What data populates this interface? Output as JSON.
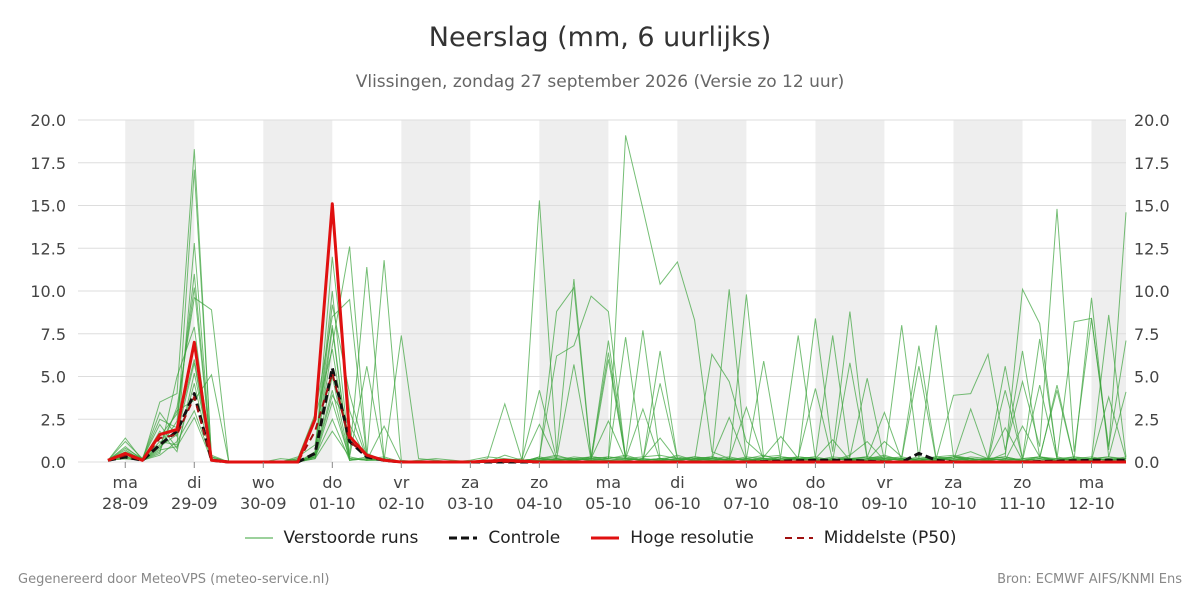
{
  "title": "Neerslag (mm, 6 uurlijks)",
  "subtitle": "Vlissingen, zondag 27 september 2026 (Versie zo 12 uur)",
  "footer_left": "Gegenereerd door MeteoVPS (meteo-service.nl)",
  "footer_right": "Bron: ECMWF AIFS/KNMI Ens",
  "colors": {
    "ensemble": "#3aa33a",
    "control": "#111111",
    "highres": "#e01010",
    "median": "#a01010",
    "shade": "#eeeeee",
    "grid": "#dddddd"
  },
  "legend": [
    {
      "label": "Verstoorde runs",
      "style": "ensemble"
    },
    {
      "label": "Controle",
      "style": "control"
    },
    {
      "label": "Hoge resolutie",
      "style": "highres"
    },
    {
      "label": "Middelste (P50)",
      "style": "median"
    }
  ],
  "chart_data": {
    "type": "line",
    "x_unit": "days since 28-09 00:00",
    "xlim": [
      -0.25,
      14.5
    ],
    "ylim": [
      0,
      20
    ],
    "yticks": [
      0.0,
      2.5,
      5.0,
      7.5,
      10.0,
      12.5,
      15.0,
      17.5,
      20.0
    ],
    "ytick_labels": [
      "0.0",
      "2.5",
      "5.0",
      "7.5",
      "10.0",
      "12.5",
      "15.0",
      "17.5",
      "20.0"
    ],
    "grid": true,
    "legend_position": "bottom",
    "x_ticks": [
      {
        "x": 0.0,
        "day": "ma",
        "date": "28-09"
      },
      {
        "x": 1.0,
        "day": "di",
        "date": "29-09"
      },
      {
        "x": 2.0,
        "day": "wo",
        "date": "30-09"
      },
      {
        "x": 3.0,
        "day": "do",
        "date": "01-10"
      },
      {
        "x": 4.0,
        "day": "vr",
        "date": "02-10"
      },
      {
        "x": 5.0,
        "day": "za",
        "date": "03-10"
      },
      {
        "x": 6.0,
        "day": "zo",
        "date": "04-10"
      },
      {
        "x": 7.0,
        "day": "ma",
        "date": "05-10"
      },
      {
        "x": 8.0,
        "day": "di",
        "date": "06-10"
      },
      {
        "x": 9.0,
        "day": "wo",
        "date": "07-10"
      },
      {
        "x": 10.0,
        "day": "do",
        "date": "08-10"
      },
      {
        "x": 11.0,
        "day": "vr",
        "date": "09-10"
      },
      {
        "x": 12.0,
        "day": "za",
        "date": "10-10"
      },
      {
        "x": 13.0,
        "day": "zo",
        "date": "11-10"
      },
      {
        "x": 14.0,
        "day": "ma",
        "date": "12-10"
      }
    ],
    "shaded_bands": [
      [
        0,
        1
      ],
      [
        2,
        3
      ],
      [
        4,
        5
      ],
      [
        6,
        7
      ],
      [
        8,
        9
      ],
      [
        10,
        11
      ],
      [
        12,
        13
      ],
      [
        14,
        14.5
      ]
    ],
    "series": [
      {
        "name": "Controle",
        "kind": "control",
        "x": [
          -0.25,
          0,
          0.25,
          0.5,
          0.75,
          1,
          1.25,
          1.5,
          1.75,
          2,
          2.25,
          2.5,
          2.75,
          3,
          3.25,
          3.5,
          3.75,
          4,
          4.5,
          5,
          5.5,
          6,
          7,
          8,
          9,
          10,
          10.5,
          11,
          11.25,
          11.5,
          11.75,
          12,
          13,
          14,
          14.5
        ],
        "y": [
          0.1,
          0.3,
          0.1,
          1.0,
          1.8,
          4.0,
          0.1,
          0,
          0,
          0,
          0,
          0,
          0.5,
          5.5,
          1.2,
          0.3,
          0.1,
          0,
          0,
          0,
          0,
          0,
          0,
          0,
          0,
          0.1,
          0.1,
          0,
          0,
          0.5,
          0.1,
          0,
          0,
          0.1,
          0.1
        ]
      },
      {
        "name": "Hoge resolutie",
        "kind": "highres",
        "x": [
          -0.25,
          0,
          0.25,
          0.5,
          0.75,
          1,
          1.25,
          1.5,
          1.75,
          2,
          2.25,
          2.5,
          2.75,
          3,
          3.25,
          3.5,
          3.75,
          4,
          4.5,
          5,
          5.5,
          6,
          7,
          8,
          9,
          10,
          11,
          12,
          13,
          14,
          14.5
        ],
        "y": [
          0.1,
          0.5,
          0.1,
          1.6,
          1.9,
          7.0,
          0.1,
          0,
          0,
          0,
          0,
          0,
          2.5,
          15.1,
          1.5,
          0.4,
          0.1,
          0,
          0,
          0,
          0.1,
          0,
          0,
          0,
          0,
          0,
          0,
          0,
          0,
          0,
          0
        ]
      },
      {
        "name": "Middelste (P50)",
        "kind": "median",
        "x": [
          -0.25,
          0,
          0.25,
          0.5,
          0.75,
          1,
          1.25,
          1.5,
          1.75,
          2,
          2.25,
          2.5,
          2.75,
          3,
          3.25,
          3.5,
          3.75,
          4,
          5,
          6,
          7,
          8,
          9,
          10,
          11,
          12,
          13,
          14,
          14.5
        ],
        "y": [
          0.1,
          0.4,
          0.1,
          1.4,
          1.6,
          3.8,
          0.1,
          0,
          0,
          0,
          0,
          0,
          1.8,
          5.2,
          1.2,
          0.4,
          0.1,
          0,
          0,
          0,
          0,
          0,
          0,
          0,
          0,
          0,
          0,
          0,
          0
        ]
      }
    ],
    "ensemble_x": [
      -0.25,
      0,
      0.25,
      0.5,
      0.75,
      1,
      1.25,
      1.5,
      1.75,
      2,
      2.25,
      2.5,
      2.75,
      3,
      3.25,
      3.5,
      3.75,
      4,
      4.25,
      4.5,
      4.75,
      5,
      5.25,
      5.5,
      5.75,
      6,
      6.25,
      6.5,
      6.75,
      7,
      7.25,
      7.5,
      7.75,
      8,
      8.25,
      8.5,
      8.75,
      9,
      9.25,
      9.5,
      9.75,
      10,
      10.25,
      10.5,
      10.75,
      11,
      11.25,
      11.5,
      11.75,
      12,
      12.25,
      12.5,
      12.75,
      13,
      13.25,
      13.5,
      13.75,
      14,
      14.25,
      14.5
    ],
    "ensemble": [
      [
        0.1,
        1.4,
        0.1,
        3.5,
        4.0,
        18.3,
        0.2,
        0,
        0,
        0,
        0,
        0.1,
        0.3,
        6.8,
        12.6,
        0.5,
        0.1,
        0,
        0,
        0,
        0,
        0,
        0,
        0,
        0,
        15.3,
        0.5,
        10.7,
        0.3,
        0.2,
        19.1,
        14.8,
        10.4,
        11.7,
        8.3,
        0.6,
        0.2,
        0.1,
        0.3,
        1.5,
        0.2,
        8.4,
        0.6,
        8.8,
        0.2,
        0.4,
        0.1,
        0.3,
        0.2,
        3.9,
        4.0,
        6.3,
        0.7,
        4.7,
        0.9,
        14.8,
        0.6,
        8.4,
        0.7,
        14.6
      ],
      [
        0.1,
        0.8,
        0.2,
        2.9,
        1.5,
        17.1,
        0.3,
        0,
        0,
        0,
        0,
        0,
        0.6,
        10.0,
        0.4,
        11.4,
        0.2,
        0,
        0,
        0,
        0,
        0,
        0,
        0,
        0,
        0.3,
        6.2,
        6.8,
        9.7,
        8.8,
        0.2,
        0.1,
        4.6,
        0.2,
        0.1,
        0.2,
        10.1,
        0.1,
        0.1,
        0.3,
        0.2,
        0.2,
        0.1,
        0.4,
        1.2,
        0.1,
        8.0,
        0.2,
        8.0,
        0.3,
        0.6,
        0.2,
        0.3,
        10.1,
        8.1,
        0.2,
        8.2,
        8.4,
        0.9,
        7.1
      ],
      [
        0.1,
        0.5,
        0.1,
        1.2,
        1.0,
        12.8,
        0.1,
        0,
        0,
        0,
        0,
        0.2,
        2.8,
        8.5,
        9.5,
        0.2,
        0.1,
        7.4,
        0.2,
        0.1,
        0,
        0.1,
        0.3,
        0.2,
        0.1,
        0.2,
        0.3,
        0.2,
        0.1,
        6.0,
        0.2,
        0.3,
        0.4,
        0.2,
        0.1,
        6.3,
        4.7,
        1.2,
        0.3,
        0.4,
        7.4,
        0.2,
        0.1,
        0.3,
        4.9,
        0.1,
        0.2,
        0.1,
        0.3,
        0.4,
        0.2,
        0.1,
        0.5,
        6.5,
        0.3,
        0.1,
        0.2,
        9.6,
        0.3,
        0.2
      ],
      [
        0.1,
        0.3,
        0.1,
        0.8,
        2.4,
        11.0,
        0.2,
        0,
        0,
        0,
        0,
        0,
        0.5,
        9.2,
        4.0,
        0.3,
        11.8,
        0.1,
        0,
        0,
        0,
        0,
        0.2,
        3.4,
        0.1,
        0.2,
        8.8,
        10.2,
        0.2,
        7.1,
        0.3,
        7.7,
        0.2,
        0.1,
        0.2,
        0.3,
        0.1,
        9.8,
        0.2,
        0.1,
        0.2,
        0.3,
        7.4,
        0.2,
        0.1,
        0.2,
        0.3,
        6.8,
        0.2,
        0.1,
        0.3,
        0.2,
        5.6,
        0.2,
        7.2,
        0.3,
        0.1,
        0.2,
        8.6,
        0.3
      ],
      [
        0.1,
        0.2,
        0.1,
        0.6,
        3.2,
        9.6,
        8.9,
        0,
        0,
        0,
        0,
        0,
        0.2,
        7.8,
        0.1,
        0.2,
        0.3,
        0,
        0,
        0,
        0,
        0,
        0,
        0.1,
        0.2,
        4.2,
        0.2,
        0.1,
        0.3,
        0.2,
        7.3,
        0.1,
        6.5,
        0.2,
        0.1,
        0.3,
        0.1,
        0.2,
        5.9,
        0.1,
        0.3,
        0.2,
        0.1,
        5.8,
        0.2,
        0.1,
        0.2,
        5.6,
        0.1,
        0.3,
        0.2,
        0.1,
        4.2,
        0.2,
        0.3,
        4.2,
        0.1,
        0.2,
        0.3,
        4.1
      ],
      [
        0.1,
        0.4,
        0.1,
        0.5,
        5.0,
        7.9,
        0.1,
        0,
        0,
        0,
        0,
        0.2,
        2.6,
        6.6,
        0.3,
        5.6,
        0.1,
        0,
        0,
        0,
        0,
        0,
        0,
        0,
        0,
        2.2,
        0.1,
        0.2,
        0.3,
        6.4,
        0.2,
        3.1,
        0.1,
        0.2,
        0.3,
        0.1,
        0.2,
        3.2,
        0.1,
        0.2,
        0.3,
        4.3,
        0.1,
        0.2,
        0.3,
        2.9,
        0.1,
        0.2,
        0.3,
        0.1,
        3.1,
        0.2,
        0.3,
        0.1,
        4.5,
        0.2,
        0.3,
        0.1,
        3.8,
        0.2
      ],
      [
        0.1,
        0.9,
        0.1,
        1.8,
        0.6,
        5.2,
        0.4,
        0,
        0,
        0,
        0.2,
        0.1,
        0.3,
        5.0,
        0.2,
        0.1,
        2.1,
        0,
        0.1,
        0.2,
        0.1,
        0,
        0,
        0,
        0,
        0.1,
        0.2,
        5.7,
        0.1,
        0.2,
        0.3,
        0.1,
        0.2,
        0.1,
        0.3,
        0.2,
        2.6,
        0.1,
        0.2,
        0.3,
        0.1,
        0.2,
        1.3,
        0.1,
        0.2,
        0.3,
        0.1,
        0.2,
        0.1,
        0.3,
        0.2,
        0.1,
        2.0,
        0.1,
        0.2,
        4.5,
        0.1,
        0.2,
        0.3,
        0.1
      ],
      [
        0.1,
        0.6,
        0.2,
        2.2,
        0.8,
        4.6,
        0.1,
        0,
        0,
        0,
        0,
        0,
        0.4,
        4.2,
        0.1,
        0.3,
        0.1,
        0,
        0,
        0,
        0,
        0,
        0,
        0.4,
        0.1,
        0.2,
        0.1,
        0.3,
        0.2,
        2.4,
        0.1,
        0.2,
        1.4,
        0.1,
        0.2,
        0.3,
        0.1,
        0.2,
        0.4,
        0.1,
        0.2,
        0.1,
        0.3,
        0.2,
        0.1,
        1.2,
        0.3,
        0.1,
        0.2,
        0.3,
        0.1,
        0.2,
        0.1,
        2.1,
        0.3,
        0.1,
        0.2,
        0.3,
        0.1,
        0.2
      ],
      [
        0.1,
        0.3,
        0.1,
        1.0,
        3.0,
        3.6,
        5.1,
        0,
        0,
        0,
        0,
        0,
        0.2,
        3.5,
        0.2,
        0.1,
        0.1,
        0,
        0,
        0,
        0,
        0,
        0,
        0,
        0,
        0.1,
        0.2,
        0.1,
        0.3,
        0.2,
        0.4,
        0.1,
        0.2,
        0.3,
        0.1,
        0.2,
        0.1,
        0.3,
        0.2,
        0.1,
        0.2,
        0.3,
        0.1,
        0.2,
        0.1,
        0.3,
        0.2,
        0.1,
        0.3,
        0.2,
        0.1,
        0.2,
        0.3,
        0.1,
        0.2,
        0.1,
        0.3,
        0.2,
        0.1,
        0.2
      ],
      [
        0.1,
        0.2,
        0.1,
        0.4,
        1.2,
        3.0,
        0.2,
        0,
        0,
        0,
        0,
        0,
        0.3,
        2.5,
        0.1,
        0.2,
        0.1,
        0,
        0,
        0,
        0,
        0,
        0,
        0,
        0,
        0.3,
        0.1,
        0.2,
        0.1,
        0.3,
        0.2,
        0.1,
        0.2,
        0.1,
        0.3,
        0.2,
        0.1,
        0.2,
        0.1,
        0.3,
        0.2,
        0.1,
        0.2,
        0.1,
        0.3,
        0.2,
        0.1,
        0.2,
        0.1,
        0.3,
        0.2,
        0.1,
        0.2,
        0.1,
        0.3,
        0.2,
        0.1,
        0.2,
        0.1,
        0.3
      ],
      [
        0.1,
        0.5,
        0.1,
        0.7,
        0.9,
        2.6,
        0.1,
        0,
        0,
        0,
        0,
        0.1,
        0.2,
        1.8,
        0.3,
        0.1,
        0.2,
        0,
        0,
        0,
        0,
        0,
        0,
        0,
        0,
        0.2,
        0.4,
        0.1,
        0.2,
        0.3,
        0.1,
        0.2,
        0.1,
        0.4,
        0.1,
        0.2,
        0.3,
        0.1,
        0.2,
        0.1,
        0.3,
        0.2,
        0.1,
        0.2,
        0.3,
        0.1,
        0.2,
        0.1,
        0.2,
        0.3,
        0.1,
        0.2,
        0.1,
        0.2,
        0.3,
        0.1,
        0.2,
        0.1,
        0.2,
        0.1
      ],
      [
        0.1,
        1.2,
        0.2,
        2.5,
        2.0,
        6.0,
        0.3,
        0,
        0,
        0,
        0,
        0,
        0.4,
        12.0,
        3.0,
        0.2,
        0.1,
        0,
        0,
        0,
        0,
        0,
        0,
        0,
        0,
        0.1,
        0.2,
        0.1,
        0.2,
        0.1,
        0.2,
        0.1,
        0.2,
        0.1,
        0.2,
        0.1,
        0.2,
        0.1,
        0.2,
        0.1,
        0.2,
        0.1,
        0.2,
        0.1,
        0.2,
        0.1,
        0.2,
        0.1,
        0.2,
        0.1,
        0.2,
        0.1,
        0.2,
        0.1,
        0.2,
        0.1,
        0.2,
        0.1,
        0.2,
        0.1
      ],
      [
        0.1,
        0.7,
        0.1,
        1.5,
        2.8,
        10.2,
        0.2,
        0,
        0,
        0,
        0,
        0.3,
        1.0,
        8.0,
        0.2,
        0.1,
        0.2,
        0,
        0,
        0,
        0,
        0,
        0,
        0,
        0,
        0.1,
        0.1,
        0.2,
        0.1,
        0.1,
        0.2,
        0.1,
        0.1,
        0.2,
        0.1,
        0.1,
        0.2,
        0.1,
        0.1,
        0.2,
        0.1,
        0.1,
        0.2,
        0.1,
        0.1,
        0.2,
        0.1,
        0.1,
        0.2,
        0.1,
        0.1,
        0.2,
        0.1,
        0.1,
        0.2,
        0.1,
        0.1,
        0.2,
        0.1,
        0.1
      ],
      [
        0.1,
        0.2,
        0.1,
        0.9,
        1.6,
        5.8,
        0.1,
        0,
        0,
        0,
        0,
        0,
        0.3,
        3.9,
        2.2,
        0.1,
        0.1,
        0,
        0,
        0,
        0,
        0,
        0,
        0,
        0,
        0.2,
        0.1,
        0.1,
        0.2,
        0.1,
        0.1,
        0.2,
        0.1,
        0.1,
        0.2,
        0.1,
        0.1,
        0.2,
        0.1,
        0.1,
        0.2,
        0.1,
        0.1,
        0.2,
        0.1,
        0.1,
        0.2,
        0.1,
        0.1,
        0.2,
        0.1,
        0.1,
        0.2,
        0.1,
        0.1,
        0.2,
        0.1,
        0.1,
        0.2,
        0.1
      ]
    ]
  }
}
